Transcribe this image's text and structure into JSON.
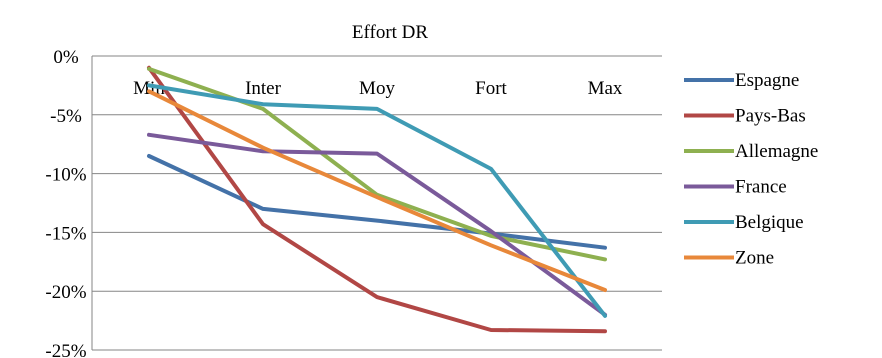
{
  "chart_data": {
    "type": "line",
    "title": "Effort DR",
    "xlabel": "",
    "ylabel": "",
    "categories": [
      "Min",
      "Inter",
      "Moy",
      "Fort",
      "Max"
    ],
    "ylim": [
      -25,
      0
    ],
    "yticks": [
      0,
      -5,
      -10,
      -15,
      -20,
      -25
    ],
    "ytick_suffix": "%",
    "grid": true,
    "legend_position": "right",
    "series": [
      {
        "name": "Espagne",
        "color": "#4472a8",
        "values": [
          -8.5,
          -13.0,
          -14.0,
          -15.1,
          -16.3
        ]
      },
      {
        "name": "Pays-Bas",
        "color": "#b14745",
        "values": [
          -1.0,
          -14.3,
          -20.5,
          -23.3,
          -23.4
        ]
      },
      {
        "name": "Allemagne",
        "color": "#8eb050",
        "values": [
          -1.1,
          -4.5,
          -11.8,
          -15.3,
          -17.3
        ]
      },
      {
        "name": "France",
        "color": "#7a5a9a",
        "values": [
          -6.7,
          -8.1,
          -8.3,
          -14.9,
          -22.0
        ]
      },
      {
        "name": "Belgique",
        "color": "#3f9bb4",
        "values": [
          -2.5,
          -4.1,
          -4.5,
          -9.6,
          -22.1
        ]
      },
      {
        "name": "Zone",
        "color": "#e8883a",
        "values": [
          -3.0,
          -7.8,
          -12.0,
          -16.1,
          -19.9
        ]
      }
    ]
  }
}
